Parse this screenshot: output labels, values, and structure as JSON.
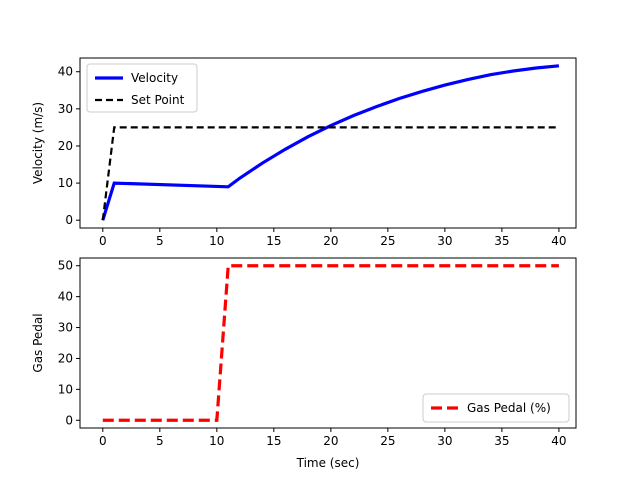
{
  "chart_data": [
    {
      "type": "line",
      "xlabel": "",
      "ylabel": "Velocity (m/s)",
      "xlim": [
        -2,
        41.5
      ],
      "ylim": [
        -2.1,
        43.7
      ],
      "xticks": [
        0,
        5,
        10,
        15,
        20,
        25,
        30,
        35,
        40
      ],
      "yticks": [
        0,
        10,
        20,
        30,
        40
      ],
      "grid": false,
      "legend_position": "upper-left",
      "series": [
        {
          "name": "Velocity",
          "color": "#0000ff",
          "linestyle": "solid",
          "x": [
            0,
            1,
            11,
            12,
            14,
            16,
            18,
            20,
            22,
            24,
            26,
            28,
            30,
            32,
            34,
            36,
            38,
            40
          ],
          "y": [
            0,
            10,
            9,
            11.3,
            15.4,
            19.1,
            22.5,
            25.5,
            28.2,
            30.6,
            32.8,
            34.7,
            36.4,
            37.9,
            39.2,
            40.2,
            41.0,
            41.6
          ]
        },
        {
          "name": "Set Point",
          "color": "#000000",
          "linestyle": "dashed",
          "x": [
            0,
            1,
            40
          ],
          "y": [
            0,
            25,
            25
          ]
        }
      ]
    },
    {
      "type": "line",
      "xlabel": "Time (sec)",
      "ylabel": "Gas Pedal",
      "xlim": [
        -2,
        41.5
      ],
      "ylim": [
        -2.5,
        52.5
      ],
      "xticks": [
        0,
        5,
        10,
        15,
        20,
        25,
        30,
        35,
        40
      ],
      "yticks": [
        0,
        10,
        20,
        30,
        40,
        50
      ],
      "grid": false,
      "legend_position": "lower-right",
      "series": [
        {
          "name": "Gas Pedal (%)",
          "color": "#ff0000",
          "linestyle": "dashed",
          "x": [
            0,
            10,
            11,
            40
          ],
          "y": [
            0,
            0,
            50,
            50
          ]
        }
      ]
    }
  ]
}
